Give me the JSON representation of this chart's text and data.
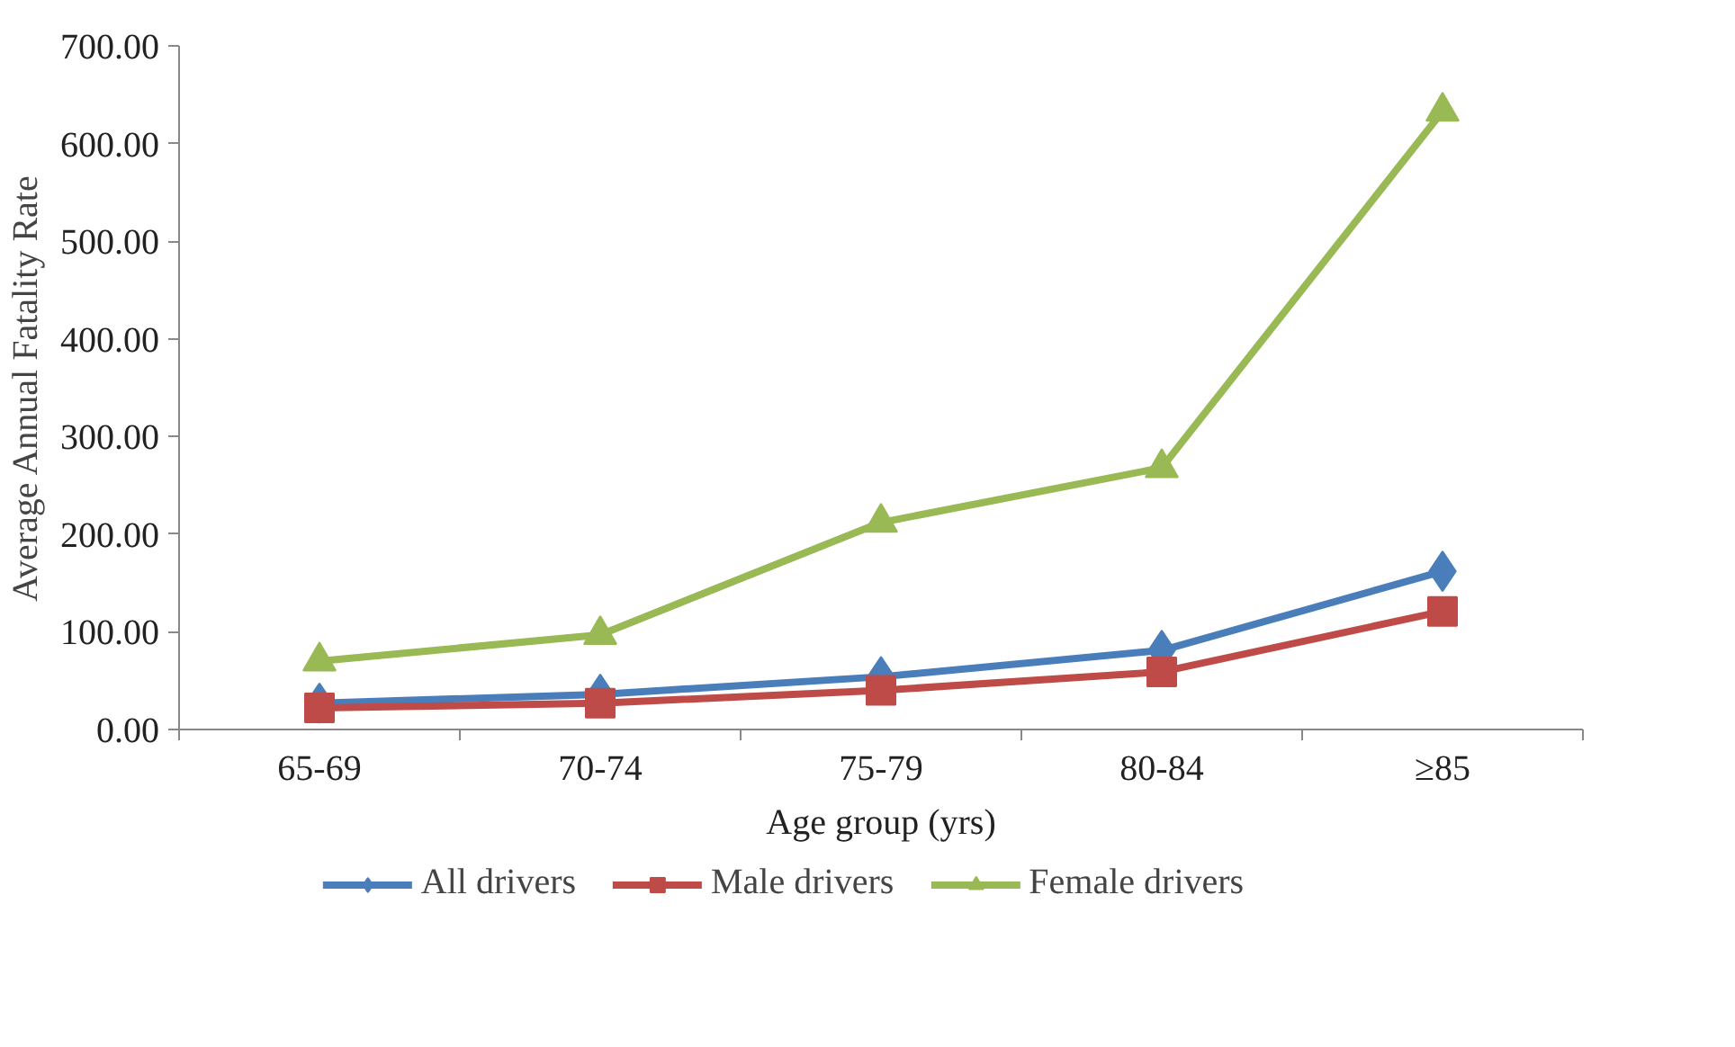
{
  "chart_data": {
    "type": "line",
    "xlabel": "Age group (yrs)",
    "ylabel": "Average Annual Fatality Rate",
    "categories": [
      "65-69",
      "70-74",
      "75-79",
      "80-84",
      "≥85"
    ],
    "ylim": [
      0,
      700
    ],
    "yticks": [
      {
        "value": 0,
        "label": "0.00"
      },
      {
        "value": 100,
        "label": "100.00"
      },
      {
        "value": 200,
        "label": "200.00"
      },
      {
        "value": 300,
        "label": "300.00"
      },
      {
        "value": 400,
        "label": "400.00"
      },
      {
        "value": 500,
        "label": "500.00"
      },
      {
        "value": 600,
        "label": "600.00"
      },
      {
        "value": 700,
        "label": "700.00"
      }
    ],
    "grid": false,
    "legend": "bottom",
    "line_style": "solid",
    "series": [
      {
        "name": "All drivers",
        "color": "#4a7ebb",
        "marker": "diamond",
        "values": [
          27,
          36,
          54,
          81,
          162
        ]
      },
      {
        "name": "Male drivers",
        "color": "#be4b48",
        "marker": "square",
        "values": [
          22,
          27,
          40,
          59,
          121
        ]
      },
      {
        "name": "Female drivers",
        "color": "#98b954",
        "marker": "triangle",
        "values": [
          70,
          97,
          212,
          268,
          633
        ]
      }
    ]
  }
}
